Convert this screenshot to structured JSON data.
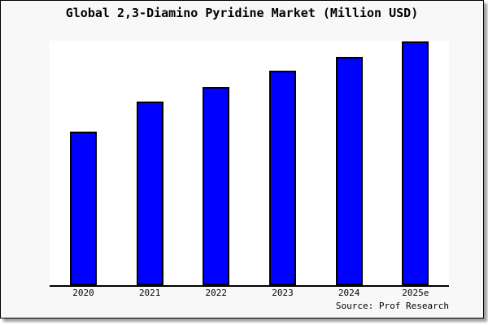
{
  "header": {
    "title": "Global 2,3-Diamino Pyridine Market (Million USD)"
  },
  "footer": {
    "source": "Source: Prof Research"
  },
  "chart_data": {
    "type": "bar",
    "title": "Global 2,3-Diamino Pyridine Market (Million USD)",
    "categories": [
      "2020",
      "2021",
      "2022",
      "2023",
      "2024",
      "2025e"
    ],
    "values": [
      63,
      75.3,
      81.3,
      88,
      93.7,
      100
    ],
    "values_note": "relative bar heights as % of 2025e bar; chart shows no numeric y-axis scale",
    "xlabel": "",
    "ylabel": "",
    "ylim": [
      0,
      100
    ],
    "grid": false,
    "y_axis_visible": false,
    "legend": false,
    "bar_color": "#0000ff",
    "bar_border_color": "#000000"
  },
  "colors": {
    "card_background": "#f8f8f8",
    "plot_background": "#ffffff",
    "axis": "#000000",
    "text": "#000000",
    "bar_fill": "#0000ff"
  }
}
